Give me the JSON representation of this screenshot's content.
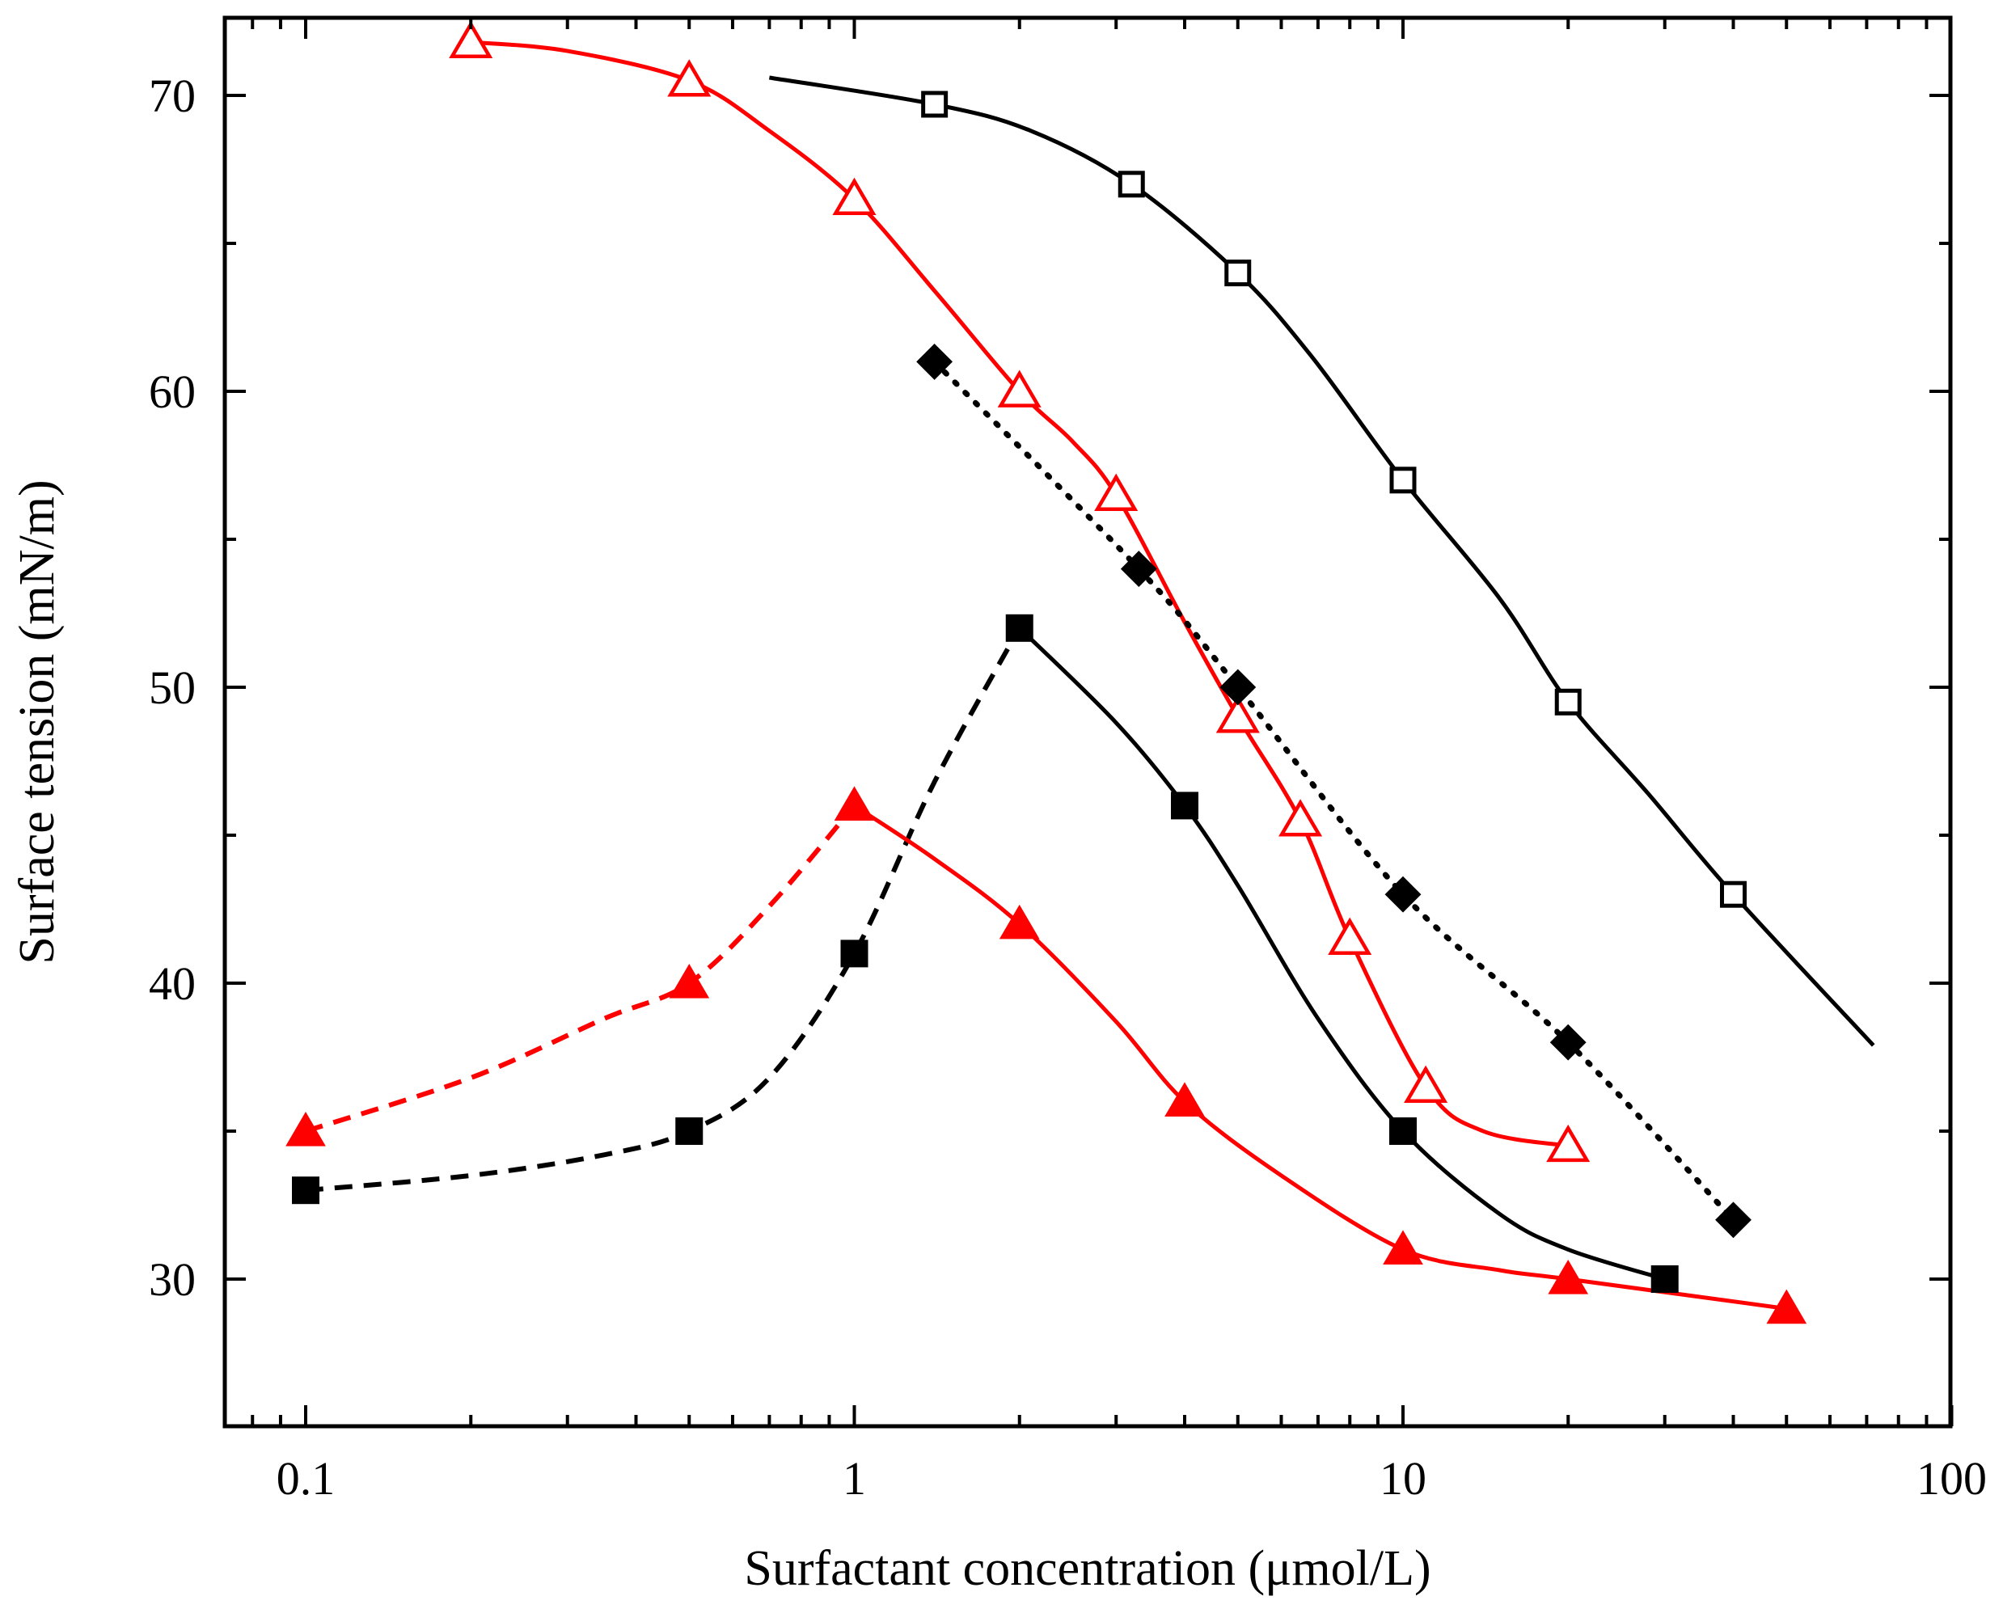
{
  "chart_data": {
    "type": "line",
    "title": "",
    "xlabel": "Surfactant concentration (μmol/L)",
    "ylabel": "Surface tension (mN/m)",
    "xscale": "log",
    "xlim": [
      0.07,
      110
    ],
    "ylim": [
      25,
      73
    ],
    "grid": false,
    "x_ticks": [
      0.1,
      1,
      10,
      100
    ],
    "x_tick_labels": [
      "0.1",
      "1",
      "10",
      "100"
    ],
    "y_ticks": [
      30,
      40,
      50,
      60,
      70
    ],
    "y_tick_labels": [
      "30",
      "40",
      "50",
      "60",
      "70"
    ],
    "series": [
      {
        "name": "open-squares",
        "color": "#000000",
        "marker": "square-open",
        "line_style": "solid",
        "x": [
          1.4,
          3.2,
          5,
          10,
          20,
          40
        ],
        "y": [
          69.7,
          67,
          64,
          57,
          49.5,
          43
        ],
        "curve": {
          "x": [
            0.7,
            1.4,
            2.1,
            3.2,
            5,
            6.8,
            10,
            15,
            20,
            28,
            40,
            72
          ],
          "y": [
            70.6,
            69.7,
            68.8,
            67,
            64,
            61.2,
            57,
            53,
            49.5,
            46.4,
            43,
            37.9
          ]
        }
      },
      {
        "name": "open-triangles",
        "color": "#ff0000",
        "marker": "triangle-open",
        "line_style": "solid",
        "x": [
          0.2,
          0.5,
          1,
          2,
          3,
          5,
          6.5,
          8,
          11,
          20
        ],
        "y": [
          71.8,
          70.5,
          66.5,
          60,
          56.5,
          49,
          45.5,
          41.5,
          36.5,
          34.5
        ],
        "curve": {
          "x": [
            0.2,
            0.3,
            0.5,
            0.7,
            1,
            1.4,
            2,
            2.5,
            3,
            4,
            5,
            6.5,
            8,
            11,
            14,
            20
          ],
          "y": [
            71.8,
            71.5,
            70.5,
            68.8,
            66.5,
            63.4,
            60,
            58.3,
            56.5,
            52.2,
            49,
            45.5,
            41.5,
            36.5,
            35,
            34.5
          ]
        }
      },
      {
        "name": "filled-diamonds",
        "color": "#000000",
        "marker": "diamond-filled",
        "line_style": "dotted",
        "x": [
          1.4,
          3.3,
          5,
          10,
          20,
          40
        ],
        "y": [
          61,
          54,
          50,
          43,
          38,
          32
        ],
        "curve": {
          "x": [
            1.4,
            3.3,
            5,
            10,
            20,
            40
          ],
          "y": [
            61,
            54,
            50,
            43,
            38,
            32
          ]
        }
      },
      {
        "name": "filled-squares",
        "color": "#000000",
        "marker": "square-filled",
        "line_style": "dashed-then-solid",
        "x": [
          0.1,
          0.5,
          1,
          2,
          4,
          10,
          30
        ],
        "y": [
          33,
          35,
          41,
          52,
          46,
          35,
          30
        ],
        "curve_dashed": {
          "x": [
            0.1,
            0.2,
            0.35,
            0.5,
            0.7,
            1,
            1.4,
            2
          ],
          "y": [
            33,
            33.5,
            34.2,
            35,
            36.8,
            41,
            46.8,
            52
          ]
        },
        "curve_solid": {
          "x": [
            2,
            3,
            4,
            5,
            7,
            10,
            15,
            20,
            30
          ],
          "y": [
            52,
            48.8,
            46,
            43.3,
            38.8,
            35,
            32.2,
            31,
            30
          ]
        }
      },
      {
        "name": "filled-triangles",
        "color": "#ff0000",
        "marker": "triangle-filled",
        "line_style": "dashed-then-solid",
        "x": [
          0.1,
          0.5,
          1,
          2,
          4,
          10,
          20,
          50
        ],
        "y": [
          35,
          40,
          46,
          42,
          36,
          31,
          30,
          29
        ],
        "curve_dashed": {
          "x": [
            0.1,
            0.2,
            0.35,
            0.5,
            0.7,
            1
          ],
          "y": [
            35,
            36.8,
            38.8,
            40,
            42.6,
            46
          ]
        },
        "curve_solid": {
          "x": [
            1,
            1.4,
            2,
            3,
            4,
            6,
            10,
            15,
            20,
            50
          ],
          "y": [
            46,
            44.2,
            42,
            38.7,
            36,
            33.5,
            31,
            30.3,
            30,
            29
          ]
        }
      }
    ]
  }
}
